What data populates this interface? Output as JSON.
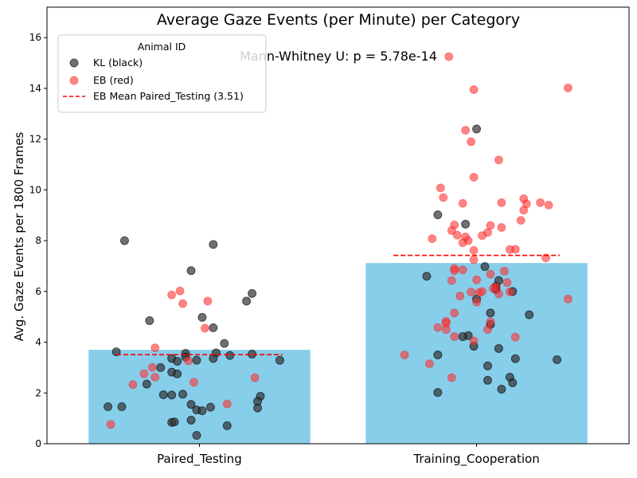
{
  "chart_data": {
    "type": "bar",
    "title": "Average Gaze Events (per Minute) per Category",
    "ylabel": "Avg. Gaze Events per 1800 Frames",
    "xlabel": "",
    "annotation": "Mann-Whitney U: p = 5.78e-14",
    "categories": [
      "Paired_Testing",
      "Training_Cooperation"
    ],
    "values": [
      3.7,
      7.12
    ],
    "bar_color": "#87CEEB",
    "ylim": [
      0,
      17.2
    ],
    "yticks": [
      0,
      2,
      4,
      6,
      8,
      10,
      12,
      14,
      16
    ],
    "grid": false,
    "legend": {
      "title": "Animal ID",
      "placement": "top-left",
      "entries": [
        {
          "label": "KL (black)",
          "kind": "marker",
          "color": "#333333"
        },
        {
          "label": "EB (red)",
          "kind": "marker",
          "color": "#ff3333"
        },
        {
          "label": "EB Mean Paired_Testing (3.51)",
          "kind": "dashed-line",
          "color": "#ff0000"
        }
      ]
    },
    "mean_line": {
      "category": "Paired_Testing",
      "value": 3.51,
      "color": "#ff0000"
    },
    "series": [
      {
        "name": "KL (black)",
        "color": "#333333",
        "points": [
          {
            "category": "Paired_Testing",
            "jitter": -0.27,
            "y": 8.0
          },
          {
            "category": "Paired_Testing",
            "jitter": 0.05,
            "y": 7.85
          },
          {
            "category": "Paired_Testing",
            "jitter": -0.03,
            "y": 6.82
          },
          {
            "category": "Paired_Testing",
            "jitter": 0.19,
            "y": 5.92
          },
          {
            "category": "Paired_Testing",
            "jitter": 0.17,
            "y": 5.62
          },
          {
            "category": "Paired_Testing",
            "jitter": 0.01,
            "y": 4.98
          },
          {
            "category": "Paired_Testing",
            "jitter": -0.18,
            "y": 4.85
          },
          {
            "category": "Paired_Testing",
            "jitter": 0.05,
            "y": 4.57
          },
          {
            "category": "Paired_Testing",
            "jitter": 0.09,
            "y": 3.95
          },
          {
            "category": "Paired_Testing",
            "jitter": -0.3,
            "y": 3.62
          },
          {
            "category": "Paired_Testing",
            "jitter": -0.05,
            "y": 3.56
          },
          {
            "category": "Paired_Testing",
            "jitter": 0.06,
            "y": 3.58
          },
          {
            "category": "Paired_Testing",
            "jitter": 0.11,
            "y": 3.48
          },
          {
            "category": "Paired_Testing",
            "jitter": 0.19,
            "y": 3.53
          },
          {
            "category": "Paired_Testing",
            "jitter": -0.05,
            "y": 3.42
          },
          {
            "category": "Paired_Testing",
            "jitter": -0.1,
            "y": 3.36
          },
          {
            "category": "Paired_Testing",
            "jitter": 0.05,
            "y": 3.36
          },
          {
            "category": "Paired_Testing",
            "jitter": -0.08,
            "y": 3.25
          },
          {
            "category": "Paired_Testing",
            "jitter": -0.01,
            "y": 3.29
          },
          {
            "category": "Paired_Testing",
            "jitter": 0.29,
            "y": 3.29
          },
          {
            "category": "Paired_Testing",
            "jitter": -0.14,
            "y": 3.0
          },
          {
            "category": "Paired_Testing",
            "jitter": -0.1,
            "y": 2.82
          },
          {
            "category": "Paired_Testing",
            "jitter": -0.08,
            "y": 2.75
          },
          {
            "category": "Paired_Testing",
            "jitter": -0.19,
            "y": 2.35
          },
          {
            "category": "Paired_Testing",
            "jitter": -0.13,
            "y": 1.93
          },
          {
            "category": "Paired_Testing",
            "jitter": -0.06,
            "y": 1.95
          },
          {
            "category": "Paired_Testing",
            "jitter": -0.1,
            "y": 1.92
          },
          {
            "category": "Paired_Testing",
            "jitter": 0.22,
            "y": 1.87
          },
          {
            "category": "Paired_Testing",
            "jitter": 0.21,
            "y": 1.67
          },
          {
            "category": "Paired_Testing",
            "jitter": -0.03,
            "y": 1.55
          },
          {
            "category": "Paired_Testing",
            "jitter": -0.28,
            "y": 1.46
          },
          {
            "category": "Paired_Testing",
            "jitter": -0.33,
            "y": 1.46
          },
          {
            "category": "Paired_Testing",
            "jitter": 0.04,
            "y": 1.44
          },
          {
            "category": "Paired_Testing",
            "jitter": 0.21,
            "y": 1.41
          },
          {
            "category": "Paired_Testing",
            "jitter": -0.01,
            "y": 1.33
          },
          {
            "category": "Paired_Testing",
            "jitter": 0.01,
            "y": 1.3
          },
          {
            "category": "Paired_Testing",
            "jitter": -0.03,
            "y": 0.93
          },
          {
            "category": "Paired_Testing",
            "jitter": -0.1,
            "y": 0.84
          },
          {
            "category": "Paired_Testing",
            "jitter": -0.09,
            "y": 0.86
          },
          {
            "category": "Paired_Testing",
            "jitter": 0.1,
            "y": 0.71
          },
          {
            "category": "Paired_Testing",
            "jitter": -0.01,
            "y": 0.33
          },
          {
            "category": "Training_Cooperation",
            "jitter": 0.0,
            "y": 12.4
          },
          {
            "category": "Training_Cooperation",
            "jitter": -0.14,
            "y": 9.02
          },
          {
            "category": "Training_Cooperation",
            "jitter": -0.04,
            "y": 8.65
          },
          {
            "category": "Training_Cooperation",
            "jitter": 0.03,
            "y": 6.98
          },
          {
            "category": "Training_Cooperation",
            "jitter": -0.18,
            "y": 6.6
          },
          {
            "category": "Training_Cooperation",
            "jitter": 0.08,
            "y": 6.43
          },
          {
            "category": "Training_Cooperation",
            "jitter": 0.07,
            "y": 6.2
          },
          {
            "category": "Training_Cooperation",
            "jitter": 0.07,
            "y": 6.08
          },
          {
            "category": "Training_Cooperation",
            "jitter": 0.13,
            "y": 6.0
          },
          {
            "category": "Training_Cooperation",
            "jitter": 0.0,
            "y": 5.7
          },
          {
            "category": "Training_Cooperation",
            "jitter": 0.05,
            "y": 5.15
          },
          {
            "category": "Training_Cooperation",
            "jitter": 0.19,
            "y": 5.08
          },
          {
            "category": "Training_Cooperation",
            "jitter": 0.05,
            "y": 4.7
          },
          {
            "category": "Training_Cooperation",
            "jitter": -0.03,
            "y": 4.26
          },
          {
            "category": "Training_Cooperation",
            "jitter": -0.05,
            "y": 4.22
          },
          {
            "category": "Training_Cooperation",
            "jitter": -0.01,
            "y": 3.84
          },
          {
            "category": "Training_Cooperation",
            "jitter": 0.08,
            "y": 3.75
          },
          {
            "category": "Training_Cooperation",
            "jitter": -0.14,
            "y": 3.5
          },
          {
            "category": "Training_Cooperation",
            "jitter": 0.14,
            "y": 3.35
          },
          {
            "category": "Training_Cooperation",
            "jitter": 0.29,
            "y": 3.31
          },
          {
            "category": "Training_Cooperation",
            "jitter": 0.04,
            "y": 3.07
          },
          {
            "category": "Training_Cooperation",
            "jitter": 0.12,
            "y": 2.62
          },
          {
            "category": "Training_Cooperation",
            "jitter": 0.04,
            "y": 2.5
          },
          {
            "category": "Training_Cooperation",
            "jitter": 0.13,
            "y": 2.4
          },
          {
            "category": "Training_Cooperation",
            "jitter": 0.09,
            "y": 2.15
          },
          {
            "category": "Training_Cooperation",
            "jitter": -0.14,
            "y": 2.02
          }
        ]
      },
      {
        "name": "EB (red)",
        "color": "#ff3333",
        "points": [
          {
            "category": "Paired_Testing",
            "jitter": -0.07,
            "y": 6.02
          },
          {
            "category": "Paired_Testing",
            "jitter": -0.1,
            "y": 5.86
          },
          {
            "category": "Paired_Testing",
            "jitter": 0.03,
            "y": 5.62
          },
          {
            "category": "Paired_Testing",
            "jitter": -0.06,
            "y": 5.52
          },
          {
            "category": "Paired_Testing",
            "jitter": 0.02,
            "y": 4.55
          },
          {
            "category": "Paired_Testing",
            "jitter": -0.16,
            "y": 3.78
          },
          {
            "category": "Paired_Testing",
            "jitter": -0.04,
            "y": 3.27
          },
          {
            "category": "Paired_Testing",
            "jitter": -0.17,
            "y": 3.01
          },
          {
            "category": "Paired_Testing",
            "jitter": -0.2,
            "y": 2.76
          },
          {
            "category": "Paired_Testing",
            "jitter": -0.16,
            "y": 2.62
          },
          {
            "category": "Paired_Testing",
            "jitter": 0.2,
            "y": 2.6
          },
          {
            "category": "Paired_Testing",
            "jitter": -0.02,
            "y": 2.42
          },
          {
            "category": "Paired_Testing",
            "jitter": -0.24,
            "y": 2.33
          },
          {
            "category": "Paired_Testing",
            "jitter": 0.1,
            "y": 1.57
          },
          {
            "category": "Paired_Testing",
            "jitter": -0.32,
            "y": 0.76
          },
          {
            "category": "Training_Cooperation",
            "jitter": -0.1,
            "y": 15.25
          },
          {
            "category": "Training_Cooperation",
            "jitter": 0.33,
            "y": 14.02
          },
          {
            "category": "Training_Cooperation",
            "jitter": -0.01,
            "y": 13.95
          },
          {
            "category": "Training_Cooperation",
            "jitter": -0.04,
            "y": 12.35
          },
          {
            "category": "Training_Cooperation",
            "jitter": -0.02,
            "y": 11.9
          },
          {
            "category": "Training_Cooperation",
            "jitter": 0.08,
            "y": 11.18
          },
          {
            "category": "Training_Cooperation",
            "jitter": -0.01,
            "y": 10.5
          },
          {
            "category": "Training_Cooperation",
            "jitter": -0.13,
            "y": 10.08
          },
          {
            "category": "Training_Cooperation",
            "jitter": -0.12,
            "y": 9.7
          },
          {
            "category": "Training_Cooperation",
            "jitter": 0.17,
            "y": 9.65
          },
          {
            "category": "Training_Cooperation",
            "jitter": 0.09,
            "y": 9.5
          },
          {
            "category": "Training_Cooperation",
            "jitter": -0.05,
            "y": 9.47
          },
          {
            "category": "Training_Cooperation",
            "jitter": 0.23,
            "y": 9.5
          },
          {
            "category": "Training_Cooperation",
            "jitter": 0.18,
            "y": 9.45
          },
          {
            "category": "Training_Cooperation",
            "jitter": 0.26,
            "y": 9.4
          },
          {
            "category": "Training_Cooperation",
            "jitter": 0.17,
            "y": 9.2
          },
          {
            "category": "Training_Cooperation",
            "jitter": 0.16,
            "y": 8.8
          },
          {
            "category": "Training_Cooperation",
            "jitter": 0.05,
            "y": 8.6
          },
          {
            "category": "Training_Cooperation",
            "jitter": -0.08,
            "y": 8.62
          },
          {
            "category": "Training_Cooperation",
            "jitter": 0.09,
            "y": 8.52
          },
          {
            "category": "Training_Cooperation",
            "jitter": -0.09,
            "y": 8.4
          },
          {
            "category": "Training_Cooperation",
            "jitter": 0.04,
            "y": 8.32
          },
          {
            "category": "Training_Cooperation",
            "jitter": -0.07,
            "y": 8.22
          },
          {
            "category": "Training_Cooperation",
            "jitter": 0.02,
            "y": 8.2
          },
          {
            "category": "Training_Cooperation",
            "jitter": -0.04,
            "y": 8.15
          },
          {
            "category": "Training_Cooperation",
            "jitter": -0.16,
            "y": 8.08
          },
          {
            "category": "Training_Cooperation",
            "jitter": -0.03,
            "y": 8.0
          },
          {
            "category": "Training_Cooperation",
            "jitter": -0.05,
            "y": 7.92
          },
          {
            "category": "Training_Cooperation",
            "jitter": 0.14,
            "y": 7.66
          },
          {
            "category": "Training_Cooperation",
            "jitter": 0.12,
            "y": 7.65
          },
          {
            "category": "Training_Cooperation",
            "jitter": -0.01,
            "y": 7.62
          },
          {
            "category": "Training_Cooperation",
            "jitter": 0.25,
            "y": 7.32
          },
          {
            "category": "Training_Cooperation",
            "jitter": -0.01,
            "y": 7.25
          },
          {
            "category": "Training_Cooperation",
            "jitter": -0.08,
            "y": 6.9
          },
          {
            "category": "Training_Cooperation",
            "jitter": -0.05,
            "y": 6.85
          },
          {
            "category": "Training_Cooperation",
            "jitter": -0.08,
            "y": 6.82
          },
          {
            "category": "Training_Cooperation",
            "jitter": 0.1,
            "y": 6.8
          },
          {
            "category": "Training_Cooperation",
            "jitter": 0.05,
            "y": 6.68
          },
          {
            "category": "Training_Cooperation",
            "jitter": -0.09,
            "y": 6.43
          },
          {
            "category": "Training_Cooperation",
            "jitter": 0.0,
            "y": 6.46
          },
          {
            "category": "Training_Cooperation",
            "jitter": 0.11,
            "y": 6.35
          },
          {
            "category": "Training_Cooperation",
            "jitter": 0.07,
            "y": 6.18
          },
          {
            "category": "Training_Cooperation",
            "jitter": 0.06,
            "y": 6.12
          },
          {
            "category": "Training_Cooperation",
            "jitter": -0.02,
            "y": 5.98
          },
          {
            "category": "Training_Cooperation",
            "jitter": 0.01,
            "y": 5.95
          },
          {
            "category": "Training_Cooperation",
            "jitter": 0.02,
            "y": 6.0
          },
          {
            "category": "Training_Cooperation",
            "jitter": 0.12,
            "y": 5.98
          },
          {
            "category": "Training_Cooperation",
            "jitter": 0.08,
            "y": 5.9
          },
          {
            "category": "Training_Cooperation",
            "jitter": -0.06,
            "y": 5.82
          },
          {
            "category": "Training_Cooperation",
            "jitter": 0.33,
            "y": 5.7
          },
          {
            "category": "Training_Cooperation",
            "jitter": 0.0,
            "y": 5.58
          },
          {
            "category": "Training_Cooperation",
            "jitter": -0.08,
            "y": 5.15
          },
          {
            "category": "Training_Cooperation",
            "jitter": -0.11,
            "y": 4.82
          },
          {
            "category": "Training_Cooperation",
            "jitter": 0.05,
            "y": 4.8
          },
          {
            "category": "Training_Cooperation",
            "jitter": -0.11,
            "y": 4.75
          },
          {
            "category": "Training_Cooperation",
            "jitter": -0.14,
            "y": 4.58
          },
          {
            "category": "Training_Cooperation",
            "jitter": -0.11,
            "y": 4.5
          },
          {
            "category": "Training_Cooperation",
            "jitter": 0.04,
            "y": 4.5
          },
          {
            "category": "Training_Cooperation",
            "jitter": -0.08,
            "y": 4.22
          },
          {
            "category": "Training_Cooperation",
            "jitter": 0.14,
            "y": 4.2
          },
          {
            "category": "Training_Cooperation",
            "jitter": -0.01,
            "y": 4.05
          },
          {
            "category": "Training_Cooperation",
            "jitter": -0.26,
            "y": 3.5
          },
          {
            "category": "Training_Cooperation",
            "jitter": -0.17,
            "y": 3.15
          },
          {
            "category": "Training_Cooperation",
            "jitter": -0.09,
            "y": 2.6
          }
        ]
      }
    ]
  }
}
